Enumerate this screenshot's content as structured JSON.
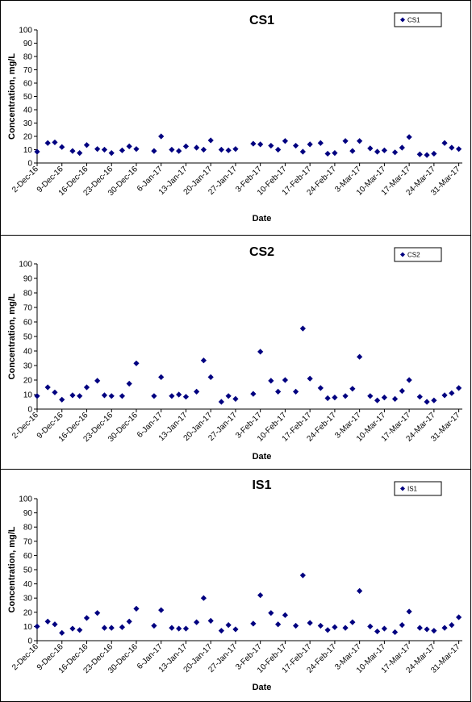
{
  "colors": {
    "marker": "#000080",
    "axis": "#000000",
    "frame": "#000000"
  },
  "chart_data": [
    {
      "type": "scatter",
      "title": "CS1",
      "xlabel": "Date",
      "ylabel": "Concentration, mg/L",
      "ylim": [
        0,
        100
      ],
      "yticks": [
        0,
        10,
        20,
        30,
        40,
        50,
        60,
        70,
        80,
        90,
        100
      ],
      "xlim": [
        "2016-12-02",
        "2017-04-01"
      ],
      "xtick_labels": [
        "2-Dec-16",
        "9-Dec-16",
        "16-Dec-16",
        "23-Dec-16",
        "30-Dec-16",
        "6-Jan-17",
        "13-Jan-17",
        "20-Jan-17",
        "27-Jan-17",
        "3-Feb-17",
        "10-Feb-17",
        "17-Feb-17",
        "24-Feb-17",
        "3-Mar-17",
        "10-Mar-17",
        "17-Mar-17",
        "24-Mar-17",
        "31-Mar-17"
      ],
      "legend": "top-right",
      "grid": false,
      "series": [
        {
          "name": "CS1",
          "marker": "diamond",
          "x": [
            "2016-12-02",
            "2016-12-05",
            "2016-12-07",
            "2016-12-09",
            "2016-12-12",
            "2016-12-14",
            "2016-12-16",
            "2016-12-19",
            "2016-12-21",
            "2016-12-23",
            "2016-12-26",
            "2016-12-28",
            "2016-12-30",
            "2017-01-04",
            "2017-01-06",
            "2017-01-09",
            "2017-01-11",
            "2017-01-13",
            "2017-01-16",
            "2017-01-18",
            "2017-01-20",
            "2017-01-23",
            "2017-01-25",
            "2017-01-27",
            "2017-02-01",
            "2017-02-03",
            "2017-02-06",
            "2017-02-08",
            "2017-02-10",
            "2017-02-13",
            "2017-02-15",
            "2017-02-17",
            "2017-02-20",
            "2017-02-22",
            "2017-02-24",
            "2017-02-27",
            "2017-03-01",
            "2017-03-03",
            "2017-03-06",
            "2017-03-08",
            "2017-03-10",
            "2017-03-13",
            "2017-03-15",
            "2017-03-17",
            "2017-03-20",
            "2017-03-22",
            "2017-03-24",
            "2017-03-27",
            "2017-03-29",
            "2017-03-31"
          ],
          "y": [
            8.5,
            15,
            15.5,
            12,
            9,
            7.5,
            13.5,
            10.5,
            10,
            7.5,
            9.5,
            12.5,
            10.5,
            9,
            20,
            10,
            9,
            12.5,
            11.5,
            10,
            17,
            10,
            9.5,
            10.5,
            14.5,
            14,
            13,
            10,
            16.5,
            13,
            8.5,
            14,
            15,
            7,
            7.5,
            16.5,
            9,
            16.5,
            11,
            8.5,
            9.5,
            8,
            11.5,
            19.5,
            6.5,
            6,
            7,
            15,
            11.5,
            10.5
          ]
        }
      ]
    },
    {
      "type": "scatter",
      "title": "CS2",
      "xlabel": "Date",
      "ylabel": "Concentration, mg/L",
      "ylim": [
        0,
        100
      ],
      "yticks": [
        0,
        10,
        20,
        30,
        40,
        50,
        60,
        70,
        80,
        90,
        100
      ],
      "xlim": [
        "2016-12-02",
        "2017-04-01"
      ],
      "xtick_labels": [
        "2-Dec-16",
        "9-Dec-16",
        "16-Dec-16",
        "23-Dec-16",
        "30-Dec-16",
        "6-Jan-17",
        "13-Jan-17",
        "20-Jan-17",
        "27-Jan-17",
        "3-Feb-17",
        "10-Feb-17",
        "17-Feb-17",
        "24-Feb-17",
        "3-Mar-17",
        "10-Mar-17",
        "17-Mar-17",
        "24-Mar-17",
        "31-Mar-17"
      ],
      "legend": "top-right",
      "grid": false,
      "series": [
        {
          "name": "CS2",
          "marker": "diamond",
          "x": [
            "2016-12-02",
            "2016-12-05",
            "2016-12-07",
            "2016-12-09",
            "2016-12-12",
            "2016-12-14",
            "2016-12-16",
            "2016-12-19",
            "2016-12-21",
            "2016-12-23",
            "2016-12-26",
            "2016-12-28",
            "2016-12-30",
            "2017-01-04",
            "2017-01-06",
            "2017-01-09",
            "2017-01-11",
            "2017-01-13",
            "2017-01-16",
            "2017-01-18",
            "2017-01-20",
            "2017-01-23",
            "2017-01-25",
            "2017-01-27",
            "2017-02-01",
            "2017-02-03",
            "2017-02-06",
            "2017-02-08",
            "2017-02-10",
            "2017-02-13",
            "2017-02-15",
            "2017-02-17",
            "2017-02-20",
            "2017-02-22",
            "2017-02-24",
            "2017-02-27",
            "2017-03-01",
            "2017-03-03",
            "2017-03-06",
            "2017-03-08",
            "2017-03-10",
            "2017-03-13",
            "2017-03-15",
            "2017-03-17",
            "2017-03-20",
            "2017-03-22",
            "2017-03-24",
            "2017-03-27",
            "2017-03-29",
            "2017-03-31"
          ],
          "y": [
            9,
            15,
            11.5,
            6.5,
            9.5,
            9,
            15,
            19.5,
            9.5,
            9,
            9,
            17.5,
            31.5,
            9,
            22,
            9,
            10,
            8.5,
            12,
            33.5,
            22,
            5,
            9,
            7,
            10.5,
            39.5,
            19.5,
            12,
            20,
            12,
            55.5,
            21,
            14.5,
            7.5,
            8,
            9,
            14,
            36,
            9,
            6,
            8,
            7,
            12.5,
            20,
            8.5,
            5,
            6,
            9.5,
            11,
            14.5
          ]
        }
      ]
    },
    {
      "type": "scatter",
      "title": "IS1",
      "xlabel": "Date",
      "ylabel": "Concentration, mg/L",
      "ylim": [
        0,
        100
      ],
      "yticks": [
        0,
        10,
        20,
        30,
        40,
        50,
        60,
        70,
        80,
        90,
        100
      ],
      "xlim": [
        "2016-12-02",
        "2017-04-01"
      ],
      "xtick_labels": [
        "2-Dec-16",
        "9-Dec-16",
        "16-Dec-16",
        "23-Dec-16",
        "30-Dec-16",
        "6-Jan-17",
        "13-Jan-17",
        "20-Jan-17",
        "27-Jan-17",
        "3-Feb-17",
        "10-Feb-17",
        "17-Feb-17",
        "24-Feb-17",
        "3-Mar-17",
        "10-Mar-17",
        "17-Mar-17",
        "24-Mar-17",
        "31-Mar-17"
      ],
      "legend": "top-right",
      "grid": false,
      "series": [
        {
          "name": "IS1",
          "marker": "diamond",
          "x": [
            "2016-12-02",
            "2016-12-05",
            "2016-12-07",
            "2016-12-09",
            "2016-12-12",
            "2016-12-14",
            "2016-12-16",
            "2016-12-19",
            "2016-12-21",
            "2016-12-23",
            "2016-12-26",
            "2016-12-28",
            "2016-12-30",
            "2017-01-04",
            "2017-01-06",
            "2017-01-09",
            "2017-01-11",
            "2017-01-13",
            "2017-01-16",
            "2017-01-18",
            "2017-01-20",
            "2017-01-23",
            "2017-01-25",
            "2017-01-27",
            "2017-02-01",
            "2017-02-03",
            "2017-02-06",
            "2017-02-08",
            "2017-02-10",
            "2017-02-13",
            "2017-02-15",
            "2017-02-17",
            "2017-02-20",
            "2017-02-22",
            "2017-02-24",
            "2017-02-27",
            "2017-03-01",
            "2017-03-03",
            "2017-03-06",
            "2017-03-08",
            "2017-03-10",
            "2017-03-13",
            "2017-03-15",
            "2017-03-17",
            "2017-03-20",
            "2017-03-22",
            "2017-03-24",
            "2017-03-27",
            "2017-03-29",
            "2017-03-31"
          ],
          "y": [
            10,
            13.5,
            11.5,
            5.5,
            8.5,
            7.5,
            16,
            19.5,
            9,
            9,
            9.5,
            13.5,
            22.5,
            10.5,
            21.5,
            9,
            8.5,
            8.5,
            13,
            30,
            14,
            7,
            11,
            8,
            12,
            32,
            19.5,
            11.5,
            18,
            10.5,
            46,
            12.5,
            10.5,
            7.5,
            9.5,
            9,
            13,
            35,
            10,
            6.5,
            8.5,
            6,
            11,
            20.5,
            9,
            8,
            7,
            9,
            11,
            16.5
          ]
        }
      ]
    }
  ]
}
